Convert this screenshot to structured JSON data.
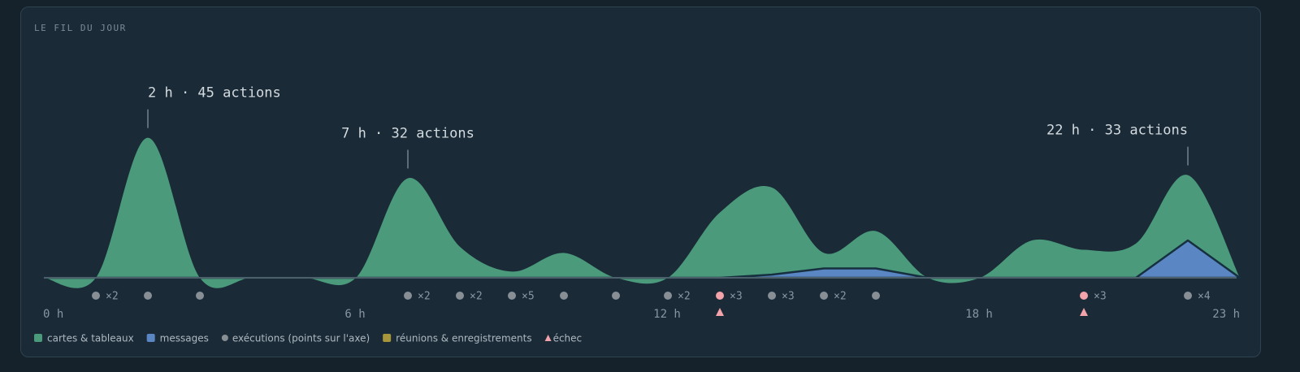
{
  "chart_data": {
    "type": "stream",
    "title": "LE FIL DU JOUR",
    "x": [
      0,
      1,
      2,
      3,
      4,
      5,
      6,
      7,
      8,
      9,
      10,
      11,
      12,
      13,
      14,
      15,
      16,
      17,
      18,
      19,
      20,
      21,
      22,
      23
    ],
    "xlim": [
      0,
      23
    ],
    "xticks": [
      {
        "value": 0,
        "label": "0 h"
      },
      {
        "value": 6,
        "label": "6 h"
      },
      {
        "value": 12,
        "label": "12 h"
      },
      {
        "value": 18,
        "label": "18 h"
      },
      {
        "value": 23,
        "label": "23 h"
      }
    ],
    "ylim": [
      0,
      47
    ],
    "series": [
      {
        "name": "cartes & tableaux",
        "color": "#4a9a7b",
        "values": [
          0,
          0,
          45,
          0,
          0,
          0,
          0,
          32,
          10,
          2,
          8,
          0,
          0,
          21,
          28,
          5,
          12,
          0,
          0,
          12,
          9,
          11,
          21,
          0
        ]
      },
      {
        "name": "messages",
        "color": "#5b86c4",
        "values": [
          0,
          0,
          0,
          0,
          0,
          0,
          0,
          0,
          0,
          0,
          0,
          0,
          0,
          0,
          1,
          3,
          3,
          0,
          0,
          0,
          0,
          0,
          12,
          0
        ]
      },
      {
        "name": "réunions & enregistrements",
        "color": "#a8963a",
        "values": [
          0,
          0,
          0,
          0,
          0,
          0,
          0,
          0,
          0,
          0,
          0,
          0,
          0,
          0,
          0,
          0,
          0,
          0,
          0,
          0,
          0,
          0,
          0,
          0
        ]
      }
    ],
    "executions": {
      "name": "exécutions (points sur l'axe)",
      "color": "#878f95",
      "failed_color": "#f3a3aa",
      "points": [
        {
          "x": 1,
          "count": 2,
          "label": "×2"
        },
        {
          "x": 2,
          "count": 1
        },
        {
          "x": 3,
          "count": 1
        },
        {
          "x": 7,
          "count": 2,
          "label": "×2"
        },
        {
          "x": 8,
          "count": 2,
          "label": "×2"
        },
        {
          "x": 9,
          "count": 5,
          "label": "×5"
        },
        {
          "x": 10,
          "count": 1
        },
        {
          "x": 11,
          "count": 1
        },
        {
          "x": 12,
          "count": 2,
          "label": "×2"
        },
        {
          "x": 13,
          "count": 3,
          "label": "×3",
          "failed": true
        },
        {
          "x": 14,
          "count": 3,
          "label": "×3"
        },
        {
          "x": 15,
          "count": 2,
          "label": "×2"
        },
        {
          "x": 16,
          "count": 1
        },
        {
          "x": 20,
          "count": 3,
          "label": "×3",
          "failed": true
        },
        {
          "x": 22,
          "count": 4,
          "label": "×4"
        }
      ]
    },
    "failure": {
      "name": "échec",
      "color": "#f3a3aa",
      "x": [
        13,
        20
      ]
    },
    "annotations": [
      {
        "x": 2,
        "text": "2 h · 45 actions"
      },
      {
        "x": 7,
        "text": "7 h · 32 actions"
      },
      {
        "x": 22,
        "text": "22 h · 33 actions"
      }
    ]
  }
}
